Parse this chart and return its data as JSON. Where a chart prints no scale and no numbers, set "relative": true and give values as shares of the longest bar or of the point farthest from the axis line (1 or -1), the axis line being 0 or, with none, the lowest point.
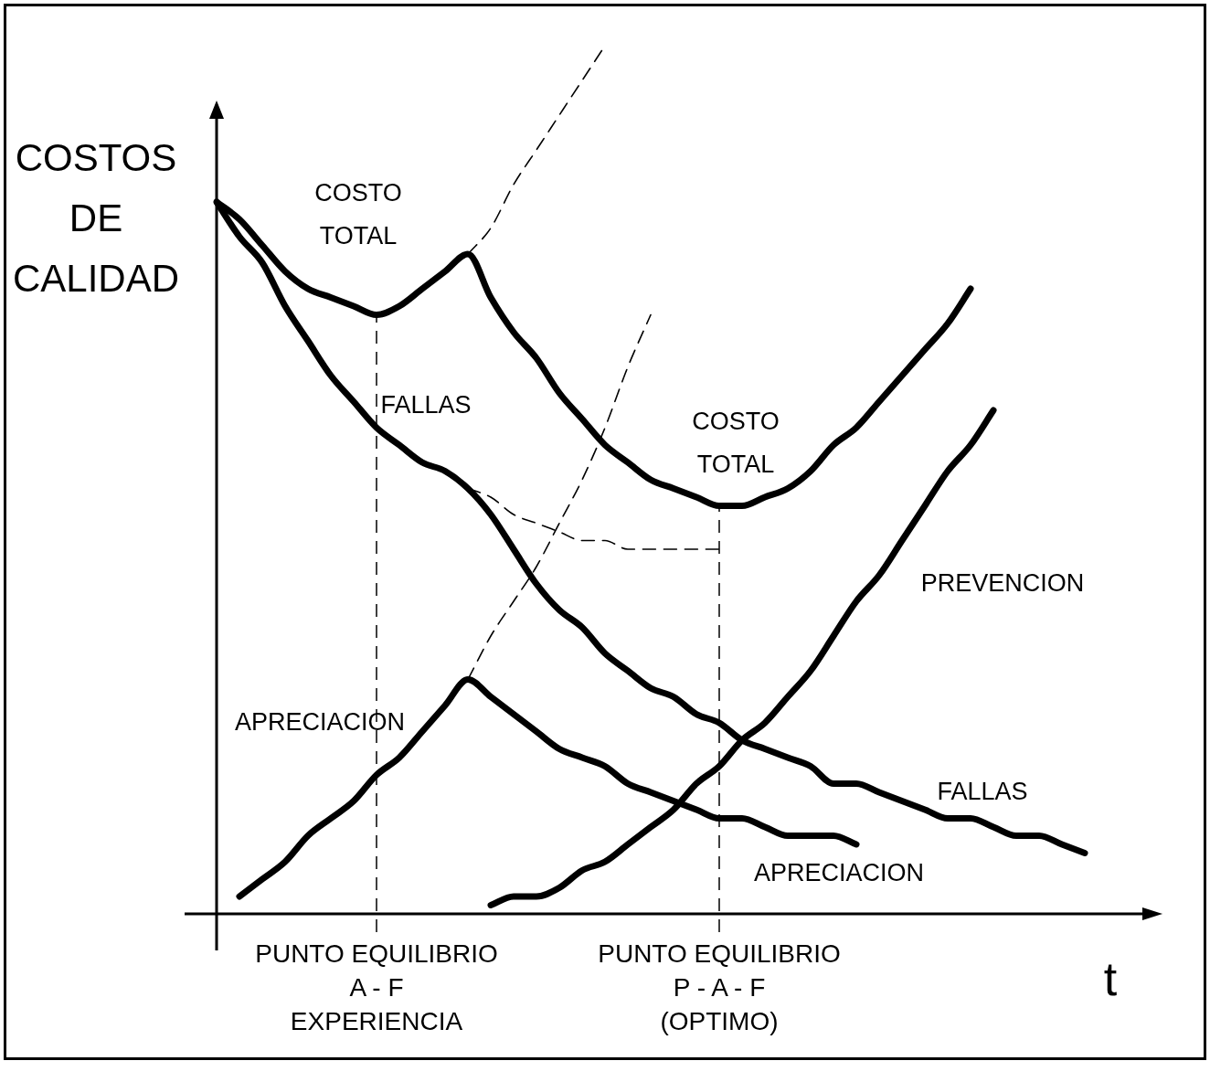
{
  "chart_data": {
    "type": "line",
    "relative": true,
    "marker": "none",
    "legend": false,
    "xlabel": "t",
    "ylabel": "COSTOS\nDE\nCALIDAD",
    "categories": [
      null,
      null,
      null,
      null,
      null,
      null,
      null,
      "PUNTO EQUILIBRIO\nA - F\nEXPERIENCIA",
      null,
      null,
      null,
      null,
      null,
      null,
      null,
      null,
      null,
      null,
      null,
      null,
      null,
      null,
      "PUNTO EQUILIBRIO\nP - A - F\n(OPTIMO)",
      null,
      null,
      null,
      null,
      null,
      null,
      null,
      null,
      null,
      null,
      null,
      null,
      null,
      null,
      null,
      null,
      null,
      null
    ],
    "series": [
      {
        "name": "COSTO\nTOTAL",
        "color": "#000000",
        "values": [
          0.82,
          0.8,
          0.77,
          0.74,
          0.72,
          0.71,
          0.7,
          0.69,
          0.7,
          0.72,
          0.74,
          0.76,
          0.71,
          0.67,
          0.64,
          0.6,
          0.57,
          0.54,
          0.52,
          0.5,
          0.49,
          0.48,
          0.47,
          0.47,
          0.48,
          0.49,
          0.51,
          0.54,
          0.56,
          0.59,
          0.62,
          0.65,
          0.68,
          0.72,
          null,
          null,
          null,
          null,
          null,
          null,
          null
        ]
      },
      {
        "color": "#000000",
        "line_style": "dashed",
        "values": [
          null,
          null,
          null,
          null,
          null,
          null,
          null,
          null,
          null,
          null,
          null,
          0.76,
          0.79,
          0.84,
          0.88,
          0.92,
          0.96,
          1,
          null,
          null,
          null,
          null,
          null,
          null,
          null,
          null,
          null,
          null,
          null,
          null,
          null,
          null,
          null,
          null,
          null,
          null,
          null,
          null,
          null,
          null,
          null
        ]
      },
      {
        "name": "FALLAS",
        "color": "#000000",
        "values": [
          0.82,
          0.78,
          0.75,
          0.7,
          0.66,
          0.62,
          0.59,
          0.56,
          0.54,
          0.52,
          0.51,
          0.49,
          0.46,
          0.42,
          0.38,
          0.35,
          0.33,
          0.3,
          0.28,
          0.26,
          0.25,
          0.23,
          0.22,
          0.2,
          0.19,
          0.18,
          0.17,
          0.15,
          0.15,
          0.14,
          0.13,
          0.12,
          0.11,
          0.11,
          0.1,
          0.09,
          0.09,
          0.08,
          0.07,
          null,
          null
        ]
      },
      {
        "color": "#000000",
        "line_style": "dashed",
        "values": [
          null,
          null,
          null,
          null,
          null,
          null,
          null,
          null,
          null,
          null,
          null,
          0.49,
          0.48,
          0.46,
          0.45,
          0.44,
          0.43,
          0.43,
          0.42,
          0.42,
          0.42,
          0.42,
          0.42,
          null,
          null,
          null,
          null,
          null,
          null,
          null,
          null,
          null,
          null,
          null,
          null,
          null,
          null,
          null,
          null,
          null,
          null
        ]
      },
      {
        "name": "APRECIACION",
        "color": "#000000",
        "values": [
          null,
          0.02,
          0.04,
          0.06,
          0.09,
          0.11,
          0.13,
          0.16,
          0.18,
          0.21,
          0.24,
          0.27,
          0.25,
          0.23,
          0.21,
          0.19,
          0.18,
          0.17,
          0.15,
          0.14,
          0.13,
          0.12,
          0.11,
          0.11,
          0.1,
          0.09,
          0.09,
          0.09,
          0.08,
          null,
          null,
          null,
          null,
          null,
          null,
          null,
          null,
          null,
          null,
          null,
          null
        ]
      },
      {
        "color": "#000000",
        "line_style": "dashed",
        "values": [
          null,
          null,
          null,
          null,
          null,
          null,
          null,
          null,
          null,
          null,
          null,
          0.27,
          0.32,
          0.36,
          0.4,
          0.45,
          0.5,
          0.56,
          0.63,
          0.69,
          null,
          null,
          null,
          null,
          null,
          null,
          null,
          null,
          null,
          null,
          null,
          null,
          null,
          null,
          null,
          null,
          null,
          null,
          null,
          null,
          null
        ]
      },
      {
        "name": "PREVENCION",
        "color": "#000000",
        "values": [
          null,
          null,
          null,
          null,
          null,
          null,
          null,
          null,
          null,
          null,
          null,
          null,
          0.01,
          0.02,
          0.02,
          0.03,
          0.05,
          0.06,
          0.08,
          0.1,
          0.12,
          0.15,
          0.17,
          0.2,
          0.22,
          0.25,
          0.28,
          0.32,
          0.36,
          0.39,
          0.43,
          0.47,
          0.51,
          0.54,
          0.58,
          null,
          null,
          null,
          null,
          null,
          null
        ]
      }
    ],
    "ref_lines": [
      {
        "axis": "x",
        "value": "PUNTO EQUILIBRIO\nA - F\nEXPERIENCIA",
        "line_style": "dashed"
      },
      {
        "axis": "x",
        "value": "PUNTO EQUILIBRIO\nP - A - F\n(OPTIMO)",
        "line_style": "dashed"
      }
    ],
    "annotations": [
      "COSTO\nTOTAL",
      "FALLAS",
      "APRECIACION"
    ]
  }
}
